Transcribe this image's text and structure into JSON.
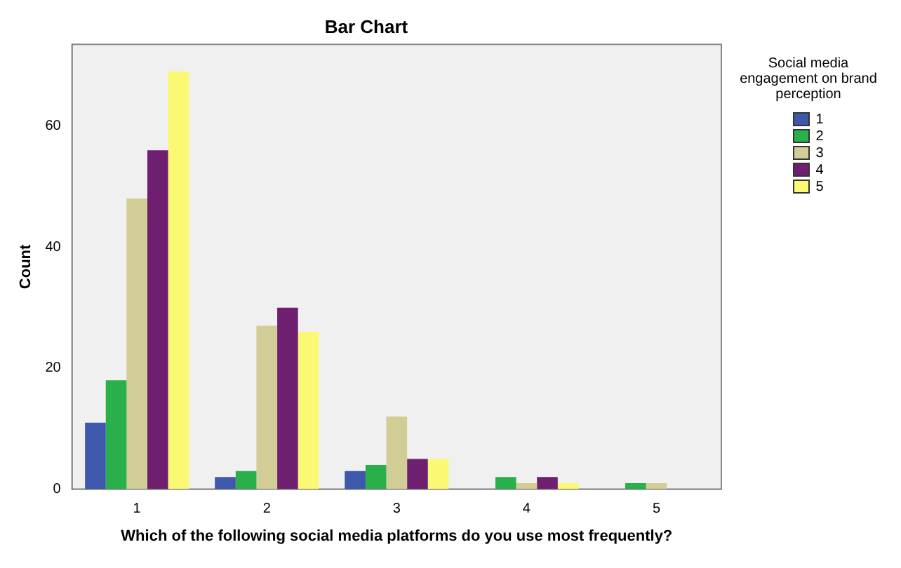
{
  "chart_data": {
    "type": "bar",
    "title": "Bar Chart",
    "xlabel": "Which of the following social media platforms do you use most frequently?",
    "ylabel": "Count",
    "legend_title": "Social media engagement on brand perception",
    "categories": [
      "1",
      "2",
      "3",
      "4",
      "5"
    ],
    "series": [
      {
        "name": "1",
        "color": "#3e58ac",
        "values": [
          11,
          2,
          3,
          0,
          0
        ]
      },
      {
        "name": "2",
        "color": "#2ab04a",
        "values": [
          18,
          3,
          4,
          2,
          1
        ]
      },
      {
        "name": "3",
        "color": "#d2cc96",
        "values": [
          48,
          27,
          12,
          1,
          1
        ]
      },
      {
        "name": "4",
        "color": "#6f1f6f",
        "values": [
          56,
          30,
          5,
          2,
          0
        ]
      },
      {
        "name": "5",
        "color": "#fbf873",
        "values": [
          69,
          26,
          5,
          1,
          0
        ]
      }
    ],
    "ylim": [
      0,
      73.5
    ],
    "yticks": [
      0,
      20,
      40,
      60
    ],
    "grid": false,
    "legend": "right"
  }
}
